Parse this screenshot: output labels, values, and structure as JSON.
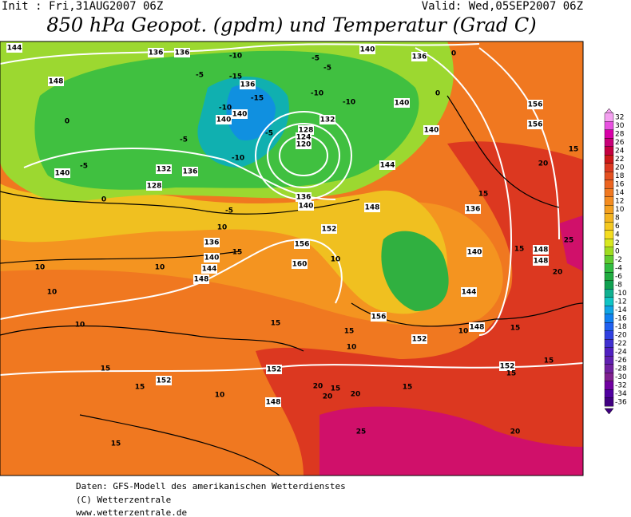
{
  "header": {
    "init": "Init : Fri,31AUG2007 06Z",
    "valid": "Valid: Wed,05SEP2007 06Z",
    "title": "850 hPa Geopot. (gpdm) und Temperatur (Grad C)"
  },
  "legend": {
    "ticks": [
      32,
      30,
      28,
      26,
      24,
      22,
      20,
      18,
      16,
      14,
      12,
      10,
      8,
      6,
      4,
      2,
      0,
      -2,
      -4,
      -6,
      -8,
      -10,
      -12,
      -14,
      -16,
      -18,
      -20,
      -22,
      -24,
      -26,
      -28,
      -30,
      -32,
      -34,
      -36
    ],
    "colors": [
      "#f4a0f0",
      "#e850e0",
      "#d800a8",
      "#c80078",
      "#c40040",
      "#cc1818",
      "#dc3820",
      "#e45020",
      "#ec6420",
      "#f07820",
      "#f48c20",
      "#f4a020",
      "#f4b420",
      "#f4c820",
      "#f4dc20",
      "#d8e820",
      "#a0dc20",
      "#60cc30",
      "#30bc40",
      "#20ac40",
      "#10a050",
      "#10b090",
      "#10c4c4",
      "#10a4e4",
      "#1080f0",
      "#2060f0",
      "#3040e0",
      "#4030d0",
      "#5020c0",
      "#6020b0",
      "#7020a0",
      "#802090",
      "#7000a0",
      "#5000a0",
      "#400080"
    ]
  },
  "map": {
    "labels": [
      144,
      148,
      136,
      136,
      -10,
      -5,
      -15,
      136,
      -15,
      -10,
      140,
      140,
      132,
      128,
      124,
      120,
      -5,
      -10,
      -5,
      140,
      132,
      136,
      128,
      136,
      140,
      -5,
      10,
      136,
      140,
      144,
      148,
      10,
      10,
      10,
      152,
      156,
      160,
      10,
      15,
      15,
      10,
      156,
      152,
      15,
      152,
      15,
      152,
      10,
      148,
      20,
      20,
      15,
      20,
      15,
      25,
      20,
      15,
      152,
      15,
      15,
      15,
      148,
      10,
      144,
      140,
      136,
      15,
      20,
      15,
      156,
      156,
      140,
      140,
      140,
      136,
      -5,
      -5,
      -10,
      -10,
      0,
      148,
      148,
      25,
      20,
      15,
      0,
      0,
      0,
      144,
      148,
      10,
      15,
      -5
    ]
  },
  "footer": {
    "lines": [
      "Daten: GFS-Modell des amerikanischen Wetterdienstes",
      "(C) Wetterzentrale",
      "www.wetterzentrale.de"
    ]
  }
}
